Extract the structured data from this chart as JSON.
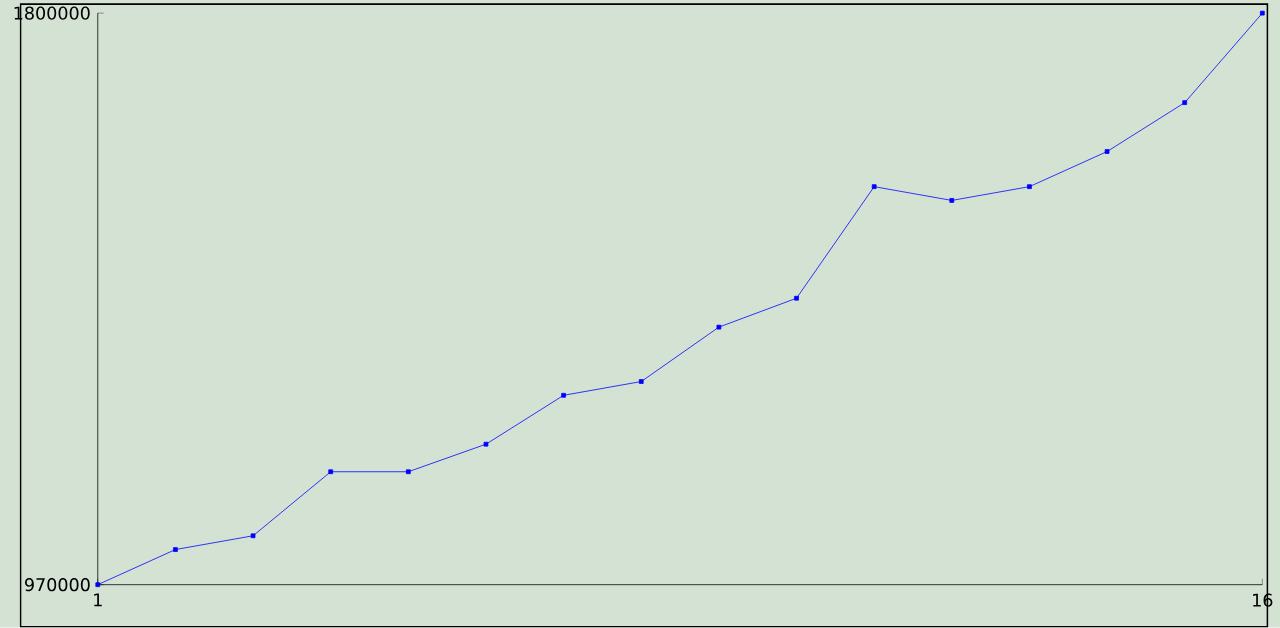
{
  "chart_data": {
    "type": "line",
    "x": [
      1,
      2,
      3,
      4,
      5,
      6,
      7,
      8,
      9,
      10,
      11,
      12,
      13,
      14,
      15,
      16
    ],
    "series": [
      {
        "color": "#0000ff",
        "values": [
          970000,
          1021000,
          1041000,
          1134000,
          1134000,
          1174000,
          1245000,
          1265000,
          1344000,
          1386000,
          1548000,
          1528000,
          1548000,
          1599000,
          1670000,
          1800000
        ]
      }
    ],
    "xlim": [
      1,
      16
    ],
    "ylim": [
      970000,
      1800000
    ],
    "xticks": [
      1,
      16
    ],
    "yticks": [
      970000,
      1800000
    ],
    "marker": "square",
    "line_style": "solid"
  }
}
